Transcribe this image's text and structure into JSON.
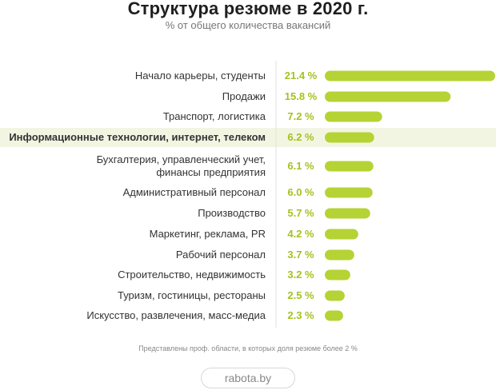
{
  "chart_data": {
    "type": "bar",
    "orientation": "horizontal",
    "title": "Структура резюме в 2020 г.",
    "subtitle": "% от общего количества вакансий",
    "categories": [
      "Начало карьеры, студенты",
      "Продажи",
      "Транспорт, логистика",
      "Информационные технологии, интернет, телеком",
      "Бухгалтерия, управленческий учет, финансы предприятия",
      "Административный персонал",
      "Производство",
      "Маркетинг, реклама, PR",
      "Рабочий персонал",
      "Строительство, недвижимость",
      "Туризм, гостиницы, рестораны",
      "Искусство, развлечения, масс-медиа"
    ],
    "category_lines": [
      [
        "Начало карьеры, студенты"
      ],
      [
        "Продажи"
      ],
      [
        "Транспорт, логистика"
      ],
      [
        "Информационные технологии, интернет, телеком"
      ],
      [
        "Бухгалтерия, управленческий учет,",
        "финансы предприятия"
      ],
      [
        "Административный персонал"
      ],
      [
        "Производство"
      ],
      [
        "Маркетинг, реклама, PR"
      ],
      [
        "Рабочий персонал"
      ],
      [
        "Строительство, недвижимость"
      ],
      [
        "Туризм, гостиницы, рестораны"
      ],
      [
        "Искусство, развлечения, масс-медиа"
      ]
    ],
    "values": [
      21.4,
      15.8,
      7.2,
      6.2,
      6.1,
      6.0,
      5.7,
      4.2,
      3.7,
      3.2,
      2.5,
      2.3
    ],
    "value_labels": [
      "21.4 %",
      "15.8 %",
      "7.2 %",
      "6.2 %",
      "6.1 %",
      "6.0 %",
      "5.7 %",
      "4.2 %",
      "3.7 %",
      "3.2 %",
      "2.5 %",
      "2.3 %"
    ],
    "highlighted_category": "Информационные технологии, интернет, телеком",
    "xlim": [
      0,
      21.4
    ],
    "grid": false,
    "legend": "none",
    "colors": {
      "bar": "#b5d334",
      "value_label": "#a4c21f",
      "highlight_bg": "#f3f5e3",
      "divider": "#e2e2e2",
      "label": "#333333"
    }
  },
  "footnote": "Представлены проф. области, в которых доля резюме более 2 %",
  "brand": "rabota.by"
}
